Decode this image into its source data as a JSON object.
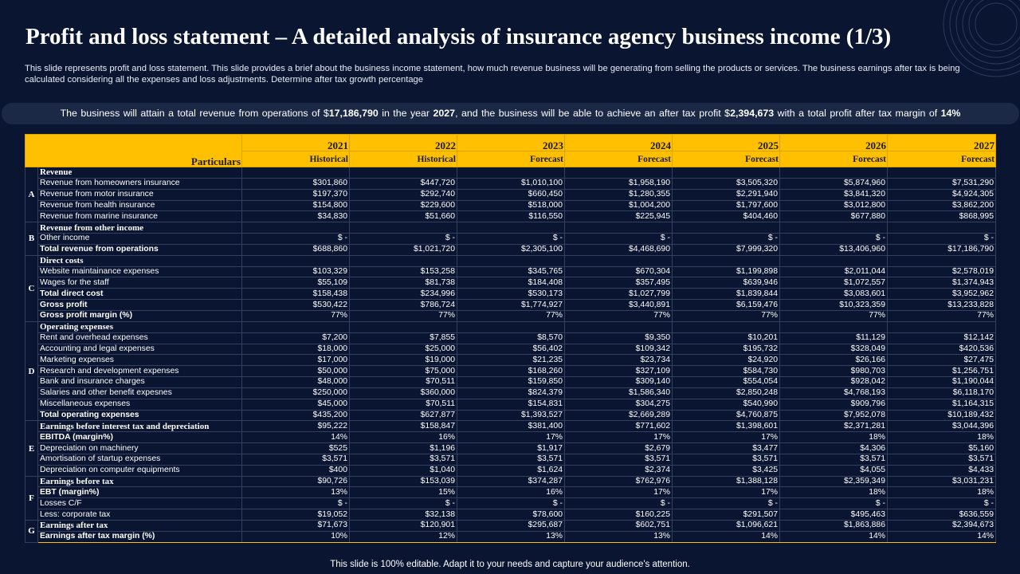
{
  "slide": {
    "title": "Profit and loss statement – A detailed analysis of insurance agency business income (1/3)",
    "description": "This slide represents profit and loss statement. This slide provides a brief about the business income statement, how much revenue business will be generating from selling the products or services. The business earnings after tax is being calculated considering all the expenses and loss adjustments. Determine after tax growth percentage",
    "footer": "This slide is 100% editable. Adapt it to your needs and capture your audience's attention.",
    "accent_color": "#fec000",
    "background_color": "#0a1531"
  },
  "banner": {
    "text1": "The business will attain a total revenue  from operations of $",
    "revenue": "17,186,790",
    "text2": " in the year ",
    "year": "2027",
    "text3": ",  and the business will be able to achieve  an after tax profit  $",
    "profit": "2,394,673",
    "text4": " with a total profit  after tax margin of ",
    "margin": "14%"
  },
  "table": {
    "header_label": "Particulars",
    "years": [
      "2021",
      "2022",
      "2023",
      "2024",
      "2025",
      "2026",
      "2027"
    ],
    "types": [
      "Historical",
      "Historical",
      "Forecast",
      "Forecast",
      "Forecast",
      "Forecast",
      "Forecast"
    ],
    "sections": [
      "A",
      "B",
      "C",
      "D",
      "E",
      "F",
      "G"
    ],
    "rows": [
      {
        "label": "Revenue",
        "style": "heading",
        "values": [
          "",
          "",
          "",
          "",
          "",
          "",
          ""
        ]
      },
      {
        "label": "Revenue from homeowners insurance",
        "style": "normal",
        "values": [
          "$301,860",
          "$447,720",
          "$1,010,100",
          "$1,958,190",
          "$3,505,320",
          "$5,874,960",
          "$7,531,290"
        ]
      },
      {
        "label": "Revenue from motor  insurance",
        "style": "normal",
        "values": [
          "$197,370",
          "$292,740",
          "$660,450",
          "$1,280,355",
          "$2,291,940",
          "$3,841,320",
          "$4,924,305"
        ]
      },
      {
        "label": "Revenue from health  insurance",
        "style": "normal",
        "values": [
          "$154,800",
          "$229,600",
          "$518,000",
          "$1,004,200",
          "$1,797,600",
          "$3,012,800",
          "$3,862,200"
        ]
      },
      {
        "label": "Revenue from marine  insurance",
        "style": "normal",
        "values": [
          "$34,830",
          "$51,660",
          "$116,550",
          "$225,945",
          "$404,460",
          "$677,880",
          "$868,995"
        ]
      },
      {
        "label": "Revenue from other income",
        "style": "heading",
        "values": [
          "",
          "",
          "",
          "",
          "",
          "",
          ""
        ]
      },
      {
        "label": "Other income",
        "style": "normal",
        "values": [
          "$ -",
          "$ -",
          "$ -",
          "$ -",
          "$ -",
          "$ -",
          "$ -"
        ]
      },
      {
        "label": "Total revenue from operations",
        "style": "bold",
        "values": [
          "$688,860",
          "$1,021,720",
          "$2,305,100",
          "$4,468,690",
          "$7,999,320",
          "$13,406,960",
          "$17,186,790"
        ]
      },
      {
        "label": "Direct costs",
        "style": "heading",
        "values": [
          "",
          "",
          "",
          "",
          "",
          "",
          ""
        ]
      },
      {
        "label": "Website maintainance expenses",
        "style": "normal",
        "values": [
          "$103,329",
          "$153,258",
          "$345,765",
          "$670,304",
          "$1,199,898",
          "$2,011,044",
          "$2,578,019"
        ]
      },
      {
        "label": "Wages for the staff",
        "style": "normal",
        "values": [
          "$55,109",
          "$81,738",
          "$184,408",
          "$357,495",
          "$639,946",
          "$1,072,557",
          "$1,374,943"
        ]
      },
      {
        "label": "Total direct cost",
        "style": "bold",
        "values": [
          "$158,438",
          "$234,996",
          "$530,173",
          "$1,027,799",
          "$1,839,844",
          "$3,083,601",
          "$3,952,962"
        ]
      },
      {
        "label": "Gross profit",
        "style": "bold",
        "values": [
          "$530,422",
          "$786,724",
          "$1,774,927",
          "$3,440,891",
          "$6,159,476",
          "$10,323,359",
          "$13,233,828"
        ]
      },
      {
        "label": "Gross profit margin (%)",
        "style": "bold",
        "values": [
          "77%",
          "77%",
          "77%",
          "77%",
          "77%",
          "77%",
          "77%"
        ]
      },
      {
        "label": "Operating expenses",
        "style": "heading",
        "values": [
          "",
          "",
          "",
          "",
          "",
          "",
          ""
        ]
      },
      {
        "label": "Rent and overhead expenses",
        "style": "normal",
        "values": [
          "$7,200",
          "$7,855",
          "$8,570",
          "$9,350",
          "$10,201",
          "$11,129",
          "$12,142"
        ]
      },
      {
        "label": "Accounting and legal expenses",
        "style": "normal",
        "values": [
          "$18,000",
          "$25,000",
          "$56,402",
          "$109,342",
          "$195,732",
          "$328,049",
          "$420,536"
        ]
      },
      {
        "label": "Marketing expenses",
        "style": "normal",
        "values": [
          "$17,000",
          "$19,000",
          "$21,235",
          "$23,734",
          "$24,920",
          "$26,166",
          "$27,475"
        ]
      },
      {
        "label": "Research and development expenses",
        "style": "normal",
        "values": [
          "$50,000",
          "$75,000",
          "$168,260",
          "$327,109",
          "$584,730",
          "$980,703",
          "$1,256,751"
        ]
      },
      {
        "label": "Bank and insurance charges",
        "style": "normal",
        "values": [
          "$48,000",
          "$70,511",
          "$159,850",
          "$309,140",
          "$554,054",
          "$928,042",
          "$1,190,044"
        ]
      },
      {
        "label": "Salaries and other benefit expesnes",
        "style": "normal",
        "values": [
          "$250,000",
          "$360,000",
          "$824,379",
          "$1,586,340",
          "$2,850,248",
          "$4,768,193",
          "$6,118,170"
        ]
      },
      {
        "label": "Miscellaneous expenses",
        "style": "normal",
        "values": [
          "$45,000",
          "$70,511",
          "$154,831",
          "$304,275",
          "$540,990",
          "$909,796",
          "$1,164,315"
        ]
      },
      {
        "label": "Total operating expenses",
        "style": "bold",
        "values": [
          "$435,200",
          "$627,877",
          "$1,393,527",
          "$2,669,289",
          "$4,760,875",
          "$7,952,078",
          "$10,189,432"
        ]
      },
      {
        "label": "Earnings before interest tax and depreciation",
        "style": "heading",
        "values": [
          "$95,222",
          "$158,847",
          "$381,400",
          "$771,602",
          "$1,398,601",
          "$2,371,281",
          "$3,044,396"
        ]
      },
      {
        "label": "EBITDA  (margin%)",
        "style": "bold",
        "values": [
          "14%",
          "16%",
          "17%",
          "17%",
          "17%",
          "18%",
          "18%"
        ]
      },
      {
        "label": "Depreciation on machinery",
        "style": "normal",
        "values": [
          "$525",
          "$1,196",
          "$1,917",
          "$2,679",
          "$3,477",
          "$4,306",
          "$5,160"
        ]
      },
      {
        "label": "Amortisation of startup expenses",
        "style": "normal",
        "values": [
          "$3,571",
          "$3,571",
          "$3,571",
          "$3,571",
          "$3,571",
          "$3,571",
          "$3,571"
        ]
      },
      {
        "label": "Depreciation on computer equipments",
        "style": "normal",
        "values": [
          "$400",
          "$1,040",
          "$1,624",
          "$2,374",
          "$3,425",
          "$4,055",
          "$4,433"
        ]
      },
      {
        "label": "Earnings before tax",
        "style": "heading",
        "values": [
          "$90,726",
          "$153,039",
          "$374,287",
          "$762,976",
          "$1,388,128",
          "$2,359,349",
          "$3,031,231"
        ]
      },
      {
        "label": "EBT  (margin%)",
        "style": "bold",
        "values": [
          "13%",
          "15%",
          "16%",
          "17%",
          "17%",
          "18%",
          "18%"
        ]
      },
      {
        "label": "Losses C/F",
        "style": "normal",
        "values": [
          "$ -",
          "$ -",
          "$ -",
          "$ -",
          "$ -",
          "$ -",
          "$ -"
        ]
      },
      {
        "label": "Less: corporate tax",
        "style": "normal",
        "values": [
          "$19,052",
          "$32,138",
          "$78,600",
          "$160,225",
          "$291,507",
          "$495,463",
          "$636,559"
        ]
      },
      {
        "label": "Earnings after tax",
        "style": "heading",
        "values": [
          "$71,673",
          "$120,901",
          "$295,687",
          "$602,751",
          "$1,096,621",
          "$1,863,886",
          "$2,394,673"
        ]
      },
      {
        "label": "Earnings after tax margin (%)",
        "style": "bold",
        "values": [
          "10%",
          "12%",
          "13%",
          "13%",
          "14%",
          "14%",
          "14%"
        ]
      }
    ]
  }
}
